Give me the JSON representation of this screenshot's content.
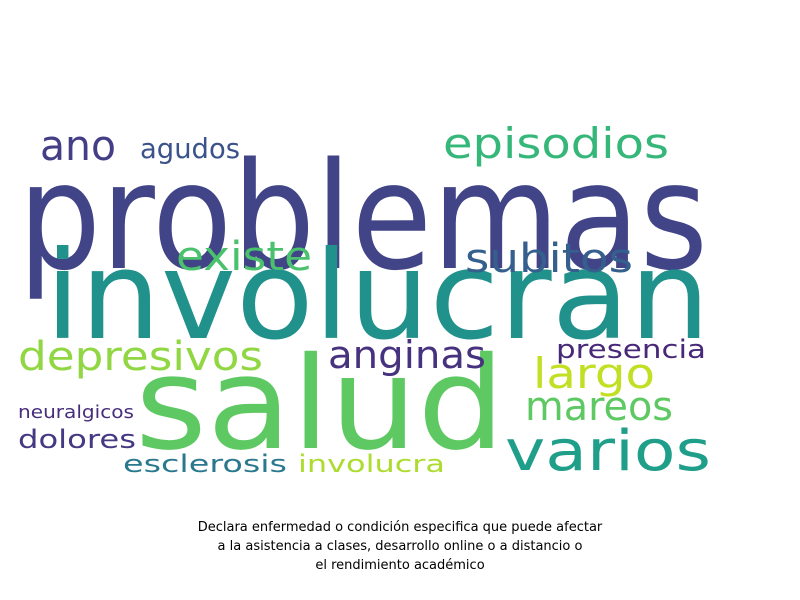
{
  "wordcloud": {
    "words": [
      {
        "text": "problemas",
        "color": "#414487"
      },
      {
        "text": "involucran",
        "color": "#21918c"
      },
      {
        "text": "salud",
        "color": "#5ec962"
      },
      {
        "text": "episodios",
        "color": "#35b779"
      },
      {
        "text": "ano",
        "color": "#433e85"
      },
      {
        "text": "agudos",
        "color": "#3b528b"
      },
      {
        "text": "existe",
        "color": "#4ac16d"
      },
      {
        "text": "subitos",
        "color": "#355f8d"
      },
      {
        "text": "depresivos",
        "color": "#90d743"
      },
      {
        "text": "anginas",
        "color": "#46327e"
      },
      {
        "text": "presencia",
        "color": "#482878"
      },
      {
        "text": "largo",
        "color": "#c2df23"
      },
      {
        "text": "mareos",
        "color": "#5ec962"
      },
      {
        "text": "varios",
        "color": "#1f9e89"
      },
      {
        "text": "neuralgicos",
        "color": "#472d7b"
      },
      {
        "text": "dolores",
        "color": "#443983"
      },
      {
        "text": "esclerosis",
        "color": "#2a788e"
      },
      {
        "text": "involucra",
        "color": "#addc30"
      }
    ]
  },
  "caption": {
    "line1": "Declara enfermedad o condición especifica que puede afectar",
    "line2": "a la asistencia a clases, desarrollo online o a distancio o",
    "line3": "el rendimiento académico"
  }
}
